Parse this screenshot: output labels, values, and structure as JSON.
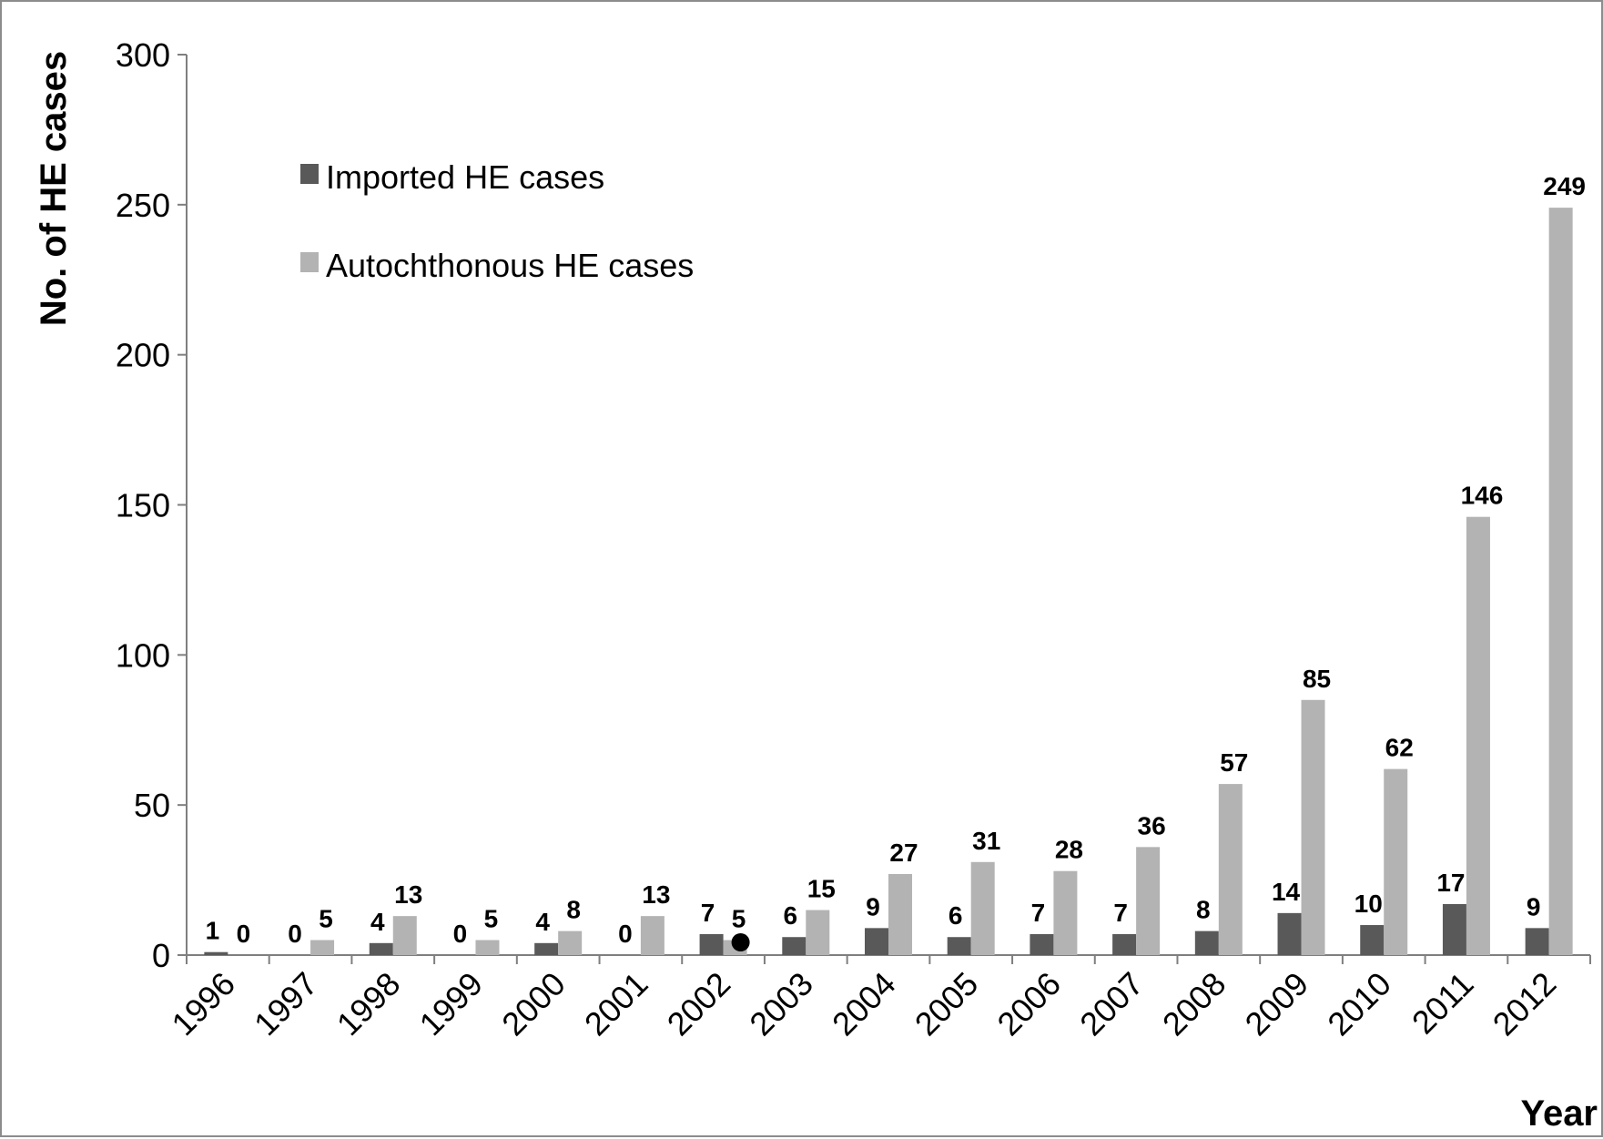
{
  "chart_data": {
    "type": "bar",
    "title": "",
    "xlabel": "Year",
    "ylabel": "No. of HE cases",
    "ylim": [
      0,
      300
    ],
    "yticks": [
      "0",
      "50",
      "100",
      "150",
      "200",
      "250",
      "300"
    ],
    "categories": [
      "1996",
      "1997",
      "1998",
      "1999",
      "2000",
      "2001",
      "2002",
      "2003",
      "2004",
      "2005",
      "2006",
      "2007",
      "2008",
      "2009",
      "2010",
      "2011",
      "2012"
    ],
    "series": [
      {
        "name": "Imported HE cases",
        "color": "#595959",
        "values": [
          1,
          0,
          4,
          0,
          4,
          0,
          7,
          6,
          9,
          6,
          7,
          7,
          8,
          14,
          10,
          17,
          9
        ],
        "labels": [
          "1",
          "0",
          "4",
          "0",
          "4",
          "0",
          "7",
          "6",
          "9",
          "6",
          "7",
          "7",
          "8",
          "14",
          "10",
          "17",
          "9"
        ]
      },
      {
        "name": "Autochthonous HE cases",
        "color": "#b3b3b3",
        "values": [
          0,
          5,
          13,
          5,
          8,
          13,
          5,
          15,
          27,
          31,
          28,
          36,
          57,
          85,
          62,
          146,
          249
        ],
        "labels": [
          "0",
          "5",
          "13",
          "5",
          "8",
          "13",
          "5",
          "15",
          "27",
          "31",
          "28",
          "36",
          "57",
          "85",
          "62",
          "146",
          "249"
        ]
      }
    ],
    "grid": false,
    "legend_position": "top-left",
    "annotations": [
      {
        "type": "dot-marker",
        "category": "2002",
        "series": "Autochthonous HE cases",
        "value": 5,
        "color": "#000000"
      }
    ]
  }
}
